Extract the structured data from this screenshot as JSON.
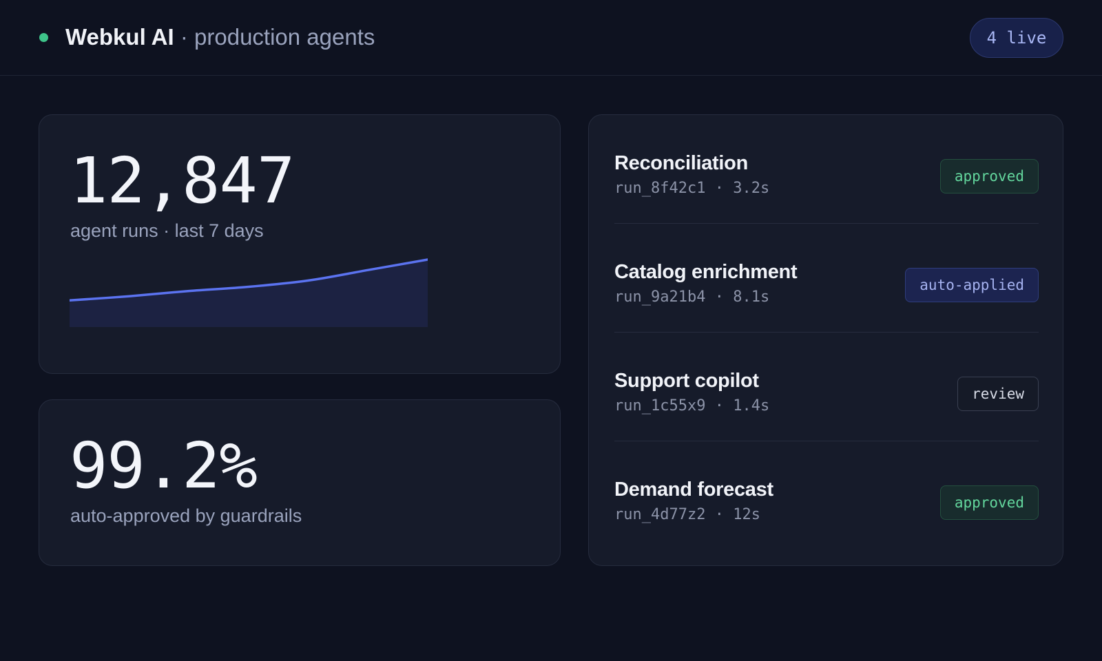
{
  "header": {
    "brand": "Webkul AI",
    "separator": " · ",
    "subtitle": "production agents",
    "live_count": "4 live",
    "live_dot_color": "#3ec48a"
  },
  "stats": {
    "runs": {
      "value": "12,847",
      "label": "agent runs · last 7 days"
    },
    "approval": {
      "value": "99.2%",
      "label": "auto-approved by guardrails"
    }
  },
  "chart_data": {
    "type": "area",
    "title": "",
    "xlabel": "",
    "ylabel": "",
    "x": [
      1,
      2,
      3,
      4,
      5,
      6,
      7
    ],
    "values": [
      22,
      30,
      40,
      48,
      60,
      80,
      100
    ],
    "ylim": [
      0,
      100
    ],
    "grid": false,
    "line_color": "#5b73f0",
    "fill_color": "#1c2242"
  },
  "agents": [
    {
      "name": "Reconciliation",
      "run_id": "run_8f42c1",
      "duration": "3.2s",
      "status": "approved",
      "status_kind": "approved"
    },
    {
      "name": "Catalog enrichment",
      "run_id": "run_9a21b4",
      "duration": "8.1s",
      "status": "auto-applied",
      "status_kind": "auto"
    },
    {
      "name": "Support copilot",
      "run_id": "run_1c55x9",
      "duration": "1.4s",
      "status": "review",
      "status_kind": "review"
    },
    {
      "name": "Demand forecast",
      "run_id": "run_4d77z2",
      "duration": "12s",
      "status": "approved",
      "status_kind": "approved"
    }
  ],
  "colors": {
    "background": "#0e1220",
    "card": "#161b2a",
    "approved": "#63d69d",
    "auto_applied": "#a6b3f1",
    "review": "#d7dbe6"
  }
}
